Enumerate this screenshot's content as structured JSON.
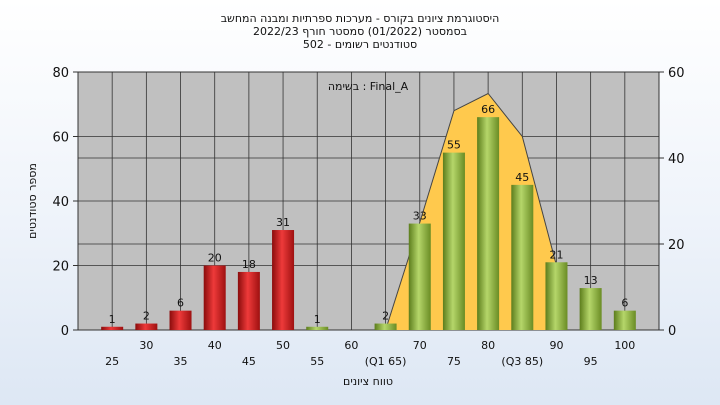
{
  "chart_data": {
    "type": "bar",
    "title_lines": [
      "היסטוגרמת ציונים בקורס - מערכות ספרתיות ומבנה המחשב",
      "בסמסטר  (01/2022)  סמסטר חורף 2022/23",
      "סטודנטים רשומים - 502"
    ],
    "annotation": "בשימה : Final_A",
    "xlabel": "טווח ציונים",
    "ylabel": "מספר סטודנטים",
    "ylim_left": [
      0,
      80
    ],
    "left_ticks": [
      "0",
      "20",
      "40",
      "60",
      "80"
    ],
    "ylim_right": [
      0,
      60
    ],
    "right_ticks": [
      "0",
      "20",
      "40",
      "60"
    ],
    "x_tick_labels": [
      "25",
      "30",
      "35",
      "40",
      "45",
      "50",
      "55",
      "60",
      "(Q1 65)",
      "70",
      "75",
      "80",
      "(Q3 85)",
      "90",
      "95",
      "100"
    ],
    "categories": [
      "25",
      "30",
      "35",
      "40",
      "45",
      "50",
      "55",
      "60",
      "65",
      "70",
      "75",
      "80",
      "85",
      "90",
      "95",
      "100"
    ],
    "values": [
      1,
      2,
      6,
      20,
      18,
      31,
      1,
      0,
      2,
      33,
      55,
      66,
      45,
      21,
      13,
      6
    ],
    "value_labels": [
      "1",
      "2",
      "6",
      "20",
      "18",
      "31",
      "1",
      "",
      "2",
      "33",
      "55",
      "66",
      "45",
      "21",
      "13",
      "6"
    ],
    "bar_colors": [
      "red",
      "red",
      "red",
      "red",
      "red",
      "red",
      "green",
      "green",
      "green",
      "green",
      "green",
      "green",
      "green",
      "green",
      "green",
      "green"
    ],
    "area_series": {
      "axis": "right",
      "x_positions": [
        8,
        9,
        10,
        11,
        12,
        13
      ],
      "values": [
        0,
        25,
        51,
        55,
        45,
        15
      ]
    },
    "grid": true,
    "colors": {
      "plot_bg": "#c0c0c0",
      "red_bar": "#d42020",
      "green_bar": "#8fb63a",
      "area": "#ffc94d"
    }
  }
}
